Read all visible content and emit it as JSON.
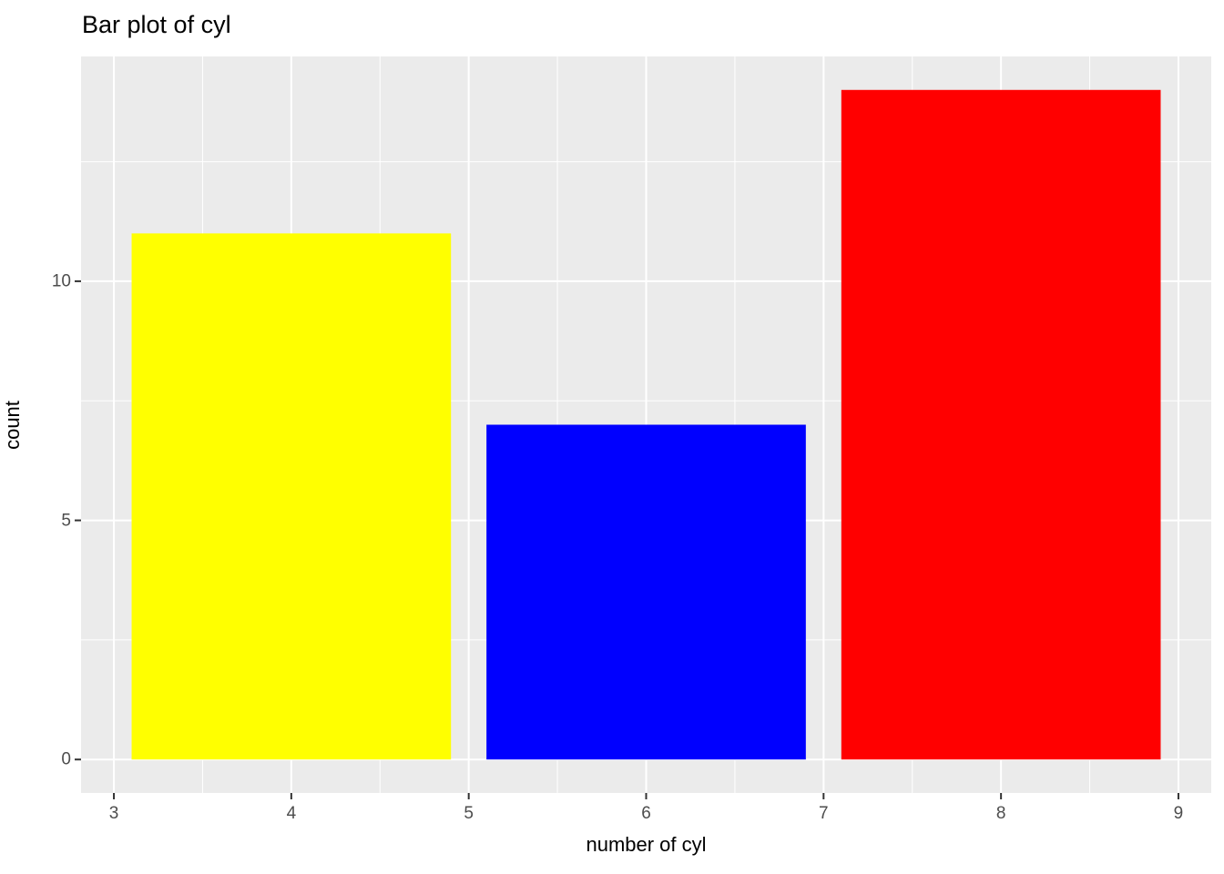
{
  "title": "Bar plot of cyl",
  "chart_data": {
    "type": "bar",
    "title": "Bar plot of cyl",
    "xlabel": "number of cyl",
    "ylabel": "count",
    "categories": [
      4,
      6,
      8
    ],
    "values": [
      11,
      7,
      14
    ],
    "bar_colors": [
      "#FFFF00",
      "#0000FF",
      "#FF0000"
    ],
    "bar_width": 1.8,
    "x_ticks": [
      3,
      4,
      5,
      6,
      7,
      8,
      9
    ],
    "y_ticks": [
      0,
      5,
      10
    ],
    "x_minor_gridlines": [
      3.5,
      4.5,
      5.5,
      6.5,
      7.5,
      8.5
    ],
    "y_minor_gridlines": [
      2.5,
      7.5,
      12.5
    ],
    "xlim": [
      2.815,
      9.185
    ],
    "ylim": [
      -0.7,
      14.7
    ],
    "grid": true,
    "legend_position": "none",
    "panel_background_color": "#EBEBEB",
    "gridline_color": "#FFFFFF",
    "tick_mark_color": "#333333",
    "tick_label_color": "#4D4D4D",
    "title_color": "#000000"
  }
}
